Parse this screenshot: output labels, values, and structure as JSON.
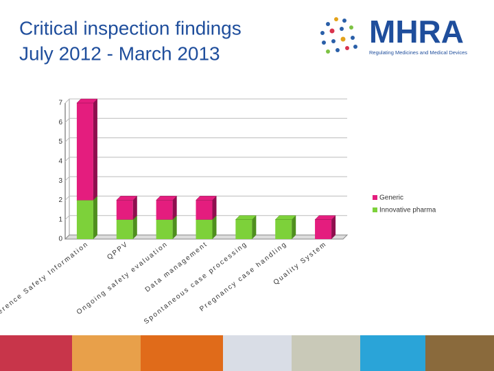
{
  "chart_data": {
    "type": "stacked_bar_3d",
    "title_lines": [
      "Critical inspection findings",
      "July 2012 - March 2013"
    ],
    "categories": [
      "Reference Safety Information",
      "QPPV",
      "Ongoing safety evaluation",
      "Data management",
      "Spontaneous case processing",
      "Pregnancy case handling",
      "Quality System"
    ],
    "series": [
      {
        "name": "Innovative pharma",
        "color": "#7dd13a",
        "side": "#4f8f1e",
        "values": [
          2,
          1,
          1,
          1,
          1,
          1,
          0
        ]
      },
      {
        "name": "Generic",
        "color": "#e41d7e",
        "side": "#8e0f4e",
        "values": [
          5,
          1,
          1,
          1,
          0,
          0,
          1
        ]
      }
    ],
    "ylim": [
      0,
      7
    ],
    "yticks": [
      0,
      1,
      2,
      3,
      4,
      5,
      6,
      7
    ],
    "grid": true
  },
  "logo": {
    "name": "MHRA",
    "tagline": "Regulating Medicines and Medical Devices"
  }
}
